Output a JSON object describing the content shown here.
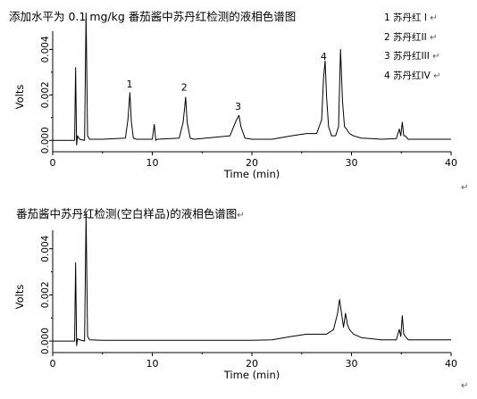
{
  "chart_data": [
    {
      "type": "line",
      "title": "添加水平为 0.1 mg/kg 番茄酱中苏丹红检测的液相色谱图",
      "xlabel": "Time (min)",
      "ylabel": "Volts",
      "xlim": [
        0,
        40
      ],
      "ylim": [
        -0.0005,
        0.0048
      ],
      "x_ticks": [
        0,
        10,
        20,
        30,
        40
      ],
      "y_ticks": [
        0.0,
        0.002,
        0.004
      ],
      "y_tick_labels": [
        "0.000",
        "0.002",
        "0.004"
      ],
      "legend": [
        "1 苏丹红 I",
        "2 苏丹红II",
        "3 苏丹红III",
        "4 苏丹红IV"
      ],
      "legend_position": "top-right",
      "peak_labels": [
        {
          "label": "1",
          "x": 7.8,
          "y": 0.0021
        },
        {
          "label": "2",
          "x": 13.3,
          "y": 0.00195
        },
        {
          "label": "3",
          "x": 18.7,
          "y": 0.0011
        },
        {
          "label": "4",
          "x": 27.3,
          "y": 0.0033
        }
      ],
      "series": [
        {
          "x": [
            0,
            2.0,
            2.2,
            2.3,
            2.4,
            2.5,
            2.7,
            3.2,
            3.35,
            3.5,
            3.7,
            5,
            7.3,
            7.55,
            7.75,
            7.9,
            8.1,
            8.4,
            10,
            10.2,
            10.35,
            10.5,
            12.7,
            13.1,
            13.35,
            13.5,
            13.8,
            14.2,
            17.8,
            18.4,
            18.7,
            18.9,
            19.3,
            20,
            22,
            24,
            25.5,
            26.5,
            27.0,
            27.2,
            27.35,
            27.5,
            27.7,
            28.0,
            28.4,
            28.7,
            28.9,
            29.1,
            29.3,
            29.5,
            29.8,
            30.2,
            31,
            32,
            33,
            34.5,
            34.8,
            34.95,
            35.1,
            35.25,
            35.4,
            35.7,
            37,
            40
          ],
          "y": [
            0.0,
            0.0,
            0.0,
            0.0032,
            -0.0002,
            0.0002,
            5e-05,
            0.0,
            0.0056,
            0.0002,
            5e-05,
            5e-05,
            0.0001,
            0.0009,
            0.0021,
            0.0008,
            0.0001,
            5e-05,
            5e-05,
            0.0007,
            0.0,
            5e-05,
            0.0001,
            0.0008,
            0.0019,
            0.0008,
            0.0001,
            5e-05,
            0.0002,
            0.00085,
            0.0011,
            0.0006,
            0.0001,
            5e-05,
            5e-05,
            0.0002,
            0.0003,
            0.0003,
            0.0009,
            0.0028,
            0.0035,
            0.0019,
            0.0006,
            0.0002,
            0.0002,
            0.0006,
            0.004,
            0.0017,
            0.0006,
            0.0005,
            0.0003,
            0.0002,
            0.0001,
            8e-05,
            5e-05,
            8e-05,
            0.0005,
            0.0002,
            0.0008,
            0.0002,
            0.0002,
            5e-05,
            5e-05,
            5e-05
          ]
        }
      ]
    },
    {
      "type": "line",
      "title": "番茄酱中苏丹红检测(空白样品)的液相色谱图",
      "xlabel": "Time (min)",
      "ylabel": "Volts",
      "xlim": [
        0,
        40
      ],
      "ylim": [
        -0.0005,
        0.0048
      ],
      "x_ticks": [
        0,
        10,
        20,
        30,
        40
      ],
      "y_ticks": [
        0.0,
        0.002,
        0.004
      ],
      "y_tick_labels": [
        "0.000",
        "0.002",
        "0.004"
      ],
      "series": [
        {
          "x": [
            0,
            2.0,
            2.2,
            2.3,
            2.4,
            2.5,
            2.7,
            3.2,
            3.35,
            3.5,
            3.7,
            5,
            10,
            15,
            20,
            22,
            24,
            25.5,
            26.5,
            27.5,
            28.2,
            28.6,
            28.8,
            29.0,
            29.2,
            29.4,
            29.6,
            29.8,
            30.2,
            31,
            32,
            33,
            34.5,
            34.8,
            34.95,
            35.1,
            35.25,
            35.4,
            35.7,
            37,
            40
          ],
          "y": [
            0.0,
            0.0,
            0.0,
            0.0034,
            -0.0002,
            0.0001,
            5e-05,
            0.0,
            0.0055,
            0.0002,
            5e-05,
            3e-05,
            3e-05,
            3e-05,
            3e-05,
            5e-05,
            0.0002,
            0.0003,
            0.0003,
            0.0003,
            0.0005,
            0.0012,
            0.0018,
            0.0012,
            0.0006,
            0.0012,
            0.0007,
            0.0005,
            0.0003,
            0.00015,
            0.0001,
            5e-05,
            5e-05,
            0.0005,
            0.0002,
            0.0011,
            0.0003,
            0.0002,
            5e-05,
            5e-05,
            5e-05
          ]
        }
      ]
    }
  ],
  "paragraph_mark": "↵"
}
